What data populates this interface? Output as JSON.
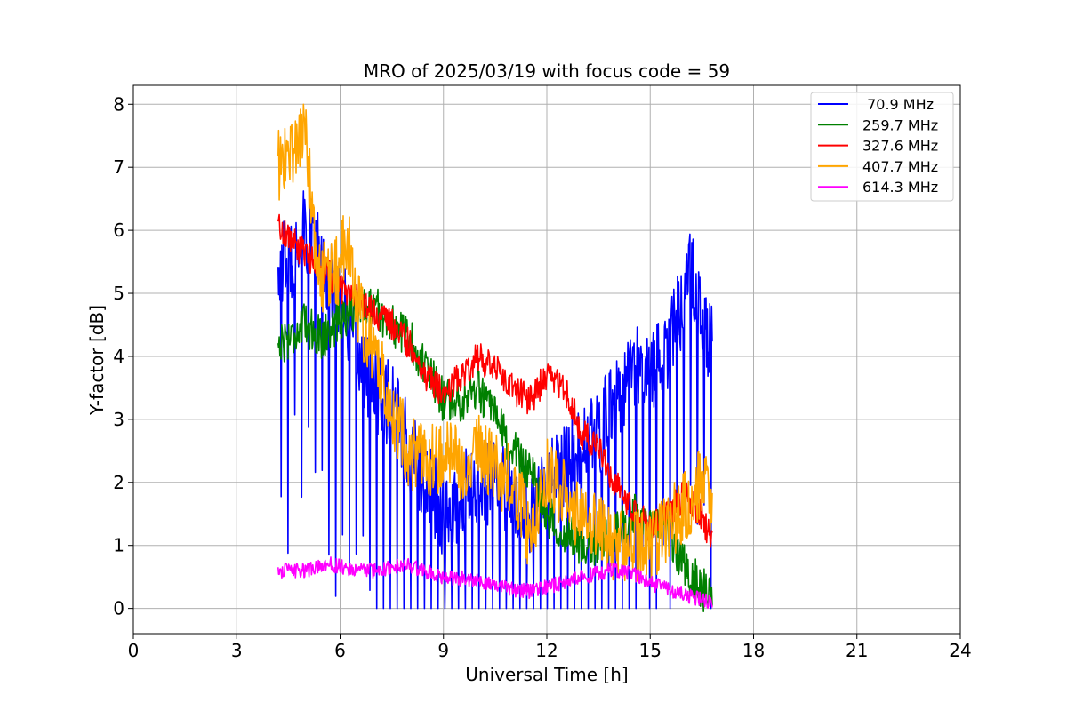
{
  "chart_data": {
    "type": "line",
    "title": "MRO of 2025/03/19 with focus code = 59",
    "xlabel": "Universal Time [h]",
    "ylabel": "Y-factor [dB]",
    "xlim": [
      0,
      24
    ],
    "ylim": [
      -0.4,
      8.3
    ],
    "xticks": [
      0,
      3,
      6,
      9,
      12,
      15,
      18,
      21,
      24
    ],
    "yticks": [
      0,
      1,
      2,
      3,
      4,
      5,
      6,
      7,
      8
    ],
    "grid": true,
    "legend_position": "top-right",
    "series": [
      {
        "name": " 70.9 MHz",
        "color": "#0000ff",
        "noise": 0.7,
        "spikes": true,
        "x": [
          4.2,
          4.5,
          5.0,
          5.5,
          6.0,
          6.5,
          7.0,
          7.5,
          8.0,
          8.5,
          9.0,
          9.5,
          10.0,
          10.5,
          11.0,
          11.5,
          12.0,
          12.5,
          13.0,
          13.5,
          14.0,
          14.5,
          15.0,
          15.5,
          16.0,
          16.2,
          16.5,
          16.8
        ],
        "y": [
          5.5,
          5.5,
          6.0,
          5.5,
          5.0,
          4.0,
          3.5,
          3.2,
          2.5,
          2.0,
          1.5,
          1.8,
          2.0,
          2.0,
          1.8,
          1.5,
          2.0,
          2.3,
          2.5,
          2.8,
          3.3,
          3.8,
          3.8,
          4.0,
          5.0,
          5.5,
          4.5,
          4.2
        ]
      },
      {
        "name": "259.7 MHz",
        "color": "#008000",
        "noise": 0.35,
        "spikes": false,
        "x": [
          4.2,
          4.5,
          5.0,
          5.5,
          6.0,
          6.5,
          7.0,
          7.5,
          8.0,
          8.5,
          9.0,
          9.5,
          10.0,
          10.5,
          11.0,
          11.5,
          12.0,
          12.5,
          13.0,
          13.5,
          14.0,
          14.5,
          15.0,
          15.5,
          16.0,
          16.5,
          16.8
        ],
        "y": [
          4.2,
          4.3,
          4.5,
          4.3,
          4.6,
          4.8,
          4.8,
          4.5,
          4.3,
          3.8,
          3.3,
          3.3,
          3.5,
          3.0,
          2.5,
          2.2,
          1.5,
          1.2,
          1.0,
          1.0,
          1.2,
          1.5,
          1.3,
          1.2,
          0.7,
          0.3,
          0.2
        ]
      },
      {
        "name": "327.6 MHz",
        "color": "#ff0000",
        "noise": 0.25,
        "spikes": false,
        "x": [
          4.2,
          4.5,
          5.0,
          5.5,
          6.0,
          6.5,
          7.0,
          7.5,
          8.0,
          8.5,
          9.0,
          9.5,
          10.0,
          10.5,
          11.0,
          11.5,
          12.0,
          12.5,
          13.0,
          13.5,
          14.0,
          14.5,
          15.0,
          15.5,
          16.0,
          16.5,
          16.8
        ],
        "y": [
          6.1,
          5.9,
          5.6,
          5.4,
          5.1,
          4.9,
          4.7,
          4.5,
          4.2,
          3.7,
          3.4,
          3.7,
          4.0,
          3.8,
          3.5,
          3.3,
          3.7,
          3.5,
          2.8,
          2.5,
          2.0,
          1.5,
          1.3,
          1.5,
          1.8,
          1.5,
          1.0
        ]
      },
      {
        "name": "407.7 MHz",
        "color": "#ffa500",
        "noise": 0.6,
        "spikes": false,
        "x": [
          4.2,
          4.5,
          5.0,
          5.3,
          5.5,
          6.0,
          6.2,
          6.5,
          7.0,
          7.5,
          8.0,
          8.5,
          9.0,
          9.5,
          10.0,
          10.5,
          11.0,
          11.5,
          12.0,
          12.5,
          13.0,
          13.5,
          14.0,
          14.5,
          15.0,
          15.5,
          16.0,
          16.5,
          16.8
        ],
        "y": [
          7.0,
          7.2,
          7.6,
          5.5,
          5.2,
          5.4,
          6.0,
          4.8,
          4.0,
          3.2,
          2.5,
          2.3,
          2.4,
          2.3,
          2.5,
          2.2,
          2.0,
          1.2,
          2.2,
          1.8,
          1.3,
          1.3,
          1.0,
          1.0,
          0.9,
          1.3,
          1.6,
          2.0,
          1.8
        ]
      },
      {
        "name": "614.3 MHz",
        "color": "#ff00ff",
        "noise": 0.12,
        "spikes": false,
        "x": [
          4.2,
          5.0,
          5.7,
          6.5,
          7.0,
          7.5,
          8.0,
          9.0,
          10.0,
          11.0,
          11.5,
          12.0,
          12.5,
          13.0,
          14.0,
          14.5,
          15.0,
          15.5,
          16.0,
          16.8
        ],
        "y": [
          0.6,
          0.6,
          0.7,
          0.6,
          0.6,
          0.65,
          0.68,
          0.5,
          0.45,
          0.3,
          0.28,
          0.35,
          0.4,
          0.5,
          0.62,
          0.55,
          0.4,
          0.3,
          0.22,
          0.1
        ]
      }
    ]
  }
}
